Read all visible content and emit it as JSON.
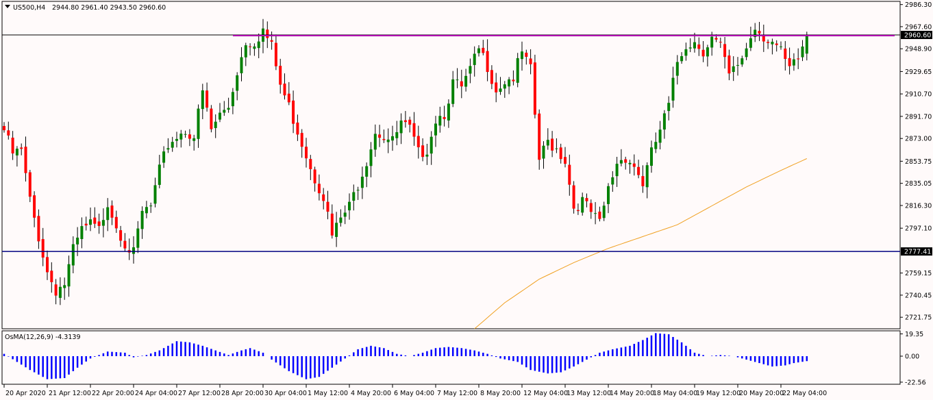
{
  "header": {
    "symbol_label": "US500,H4",
    "ohlc_label": "2944.80 2961.40 2943.50 2960.60",
    "indicator_label": "OsMA(12,26,9) -4.3139"
  },
  "colors": {
    "background": "#fffafa",
    "bull": "#008000",
    "bear": "#ff0000",
    "wick": "#000000",
    "ma_line": "#f0a020",
    "resistance_line": "#b000b0",
    "support_line": "#000080",
    "price_line": "#000000",
    "osma_bar": "#0000ff",
    "label_box": "#000000",
    "label_text": "#ffffff"
  },
  "chart_data": [
    {
      "type": "candlestick",
      "title": "US500,H4",
      "ylim": [
        2712,
        2989
      ],
      "yticks": [
        2986.3,
        2967.6,
        2948.9,
        2929.65,
        2910.7,
        2891.7,
        2873.0,
        2853.75,
        2835.05,
        2816.3,
        2797.1,
        2777.41,
        2759.15,
        2740.45,
        2721.75
      ],
      "ytick_labels": [
        "2986.30",
        "2967.60",
        "2948.90",
        "2929.65",
        "2910.70",
        "2891.70",
        "2873.00",
        "2853.75",
        "2835.05",
        "2816.30",
        "2797.10",
        "2777.41",
        "2759.15",
        "2740.45",
        "2721.75"
      ],
      "xlabels": [
        {
          "index": 0,
          "label": "20 Apr 2020"
        },
        {
          "index": 10,
          "label": "21 Apr 12:00"
        },
        {
          "index": 20,
          "label": "22 Apr 20:00"
        },
        {
          "index": 30,
          "label": "24 Apr 04:00"
        },
        {
          "index": 40,
          "label": "27 Apr 12:00"
        },
        {
          "index": 50,
          "label": "28 Apr 20:00"
        },
        {
          "index": 60,
          "label": "30 Apr 04:00"
        },
        {
          "index": 70,
          "label": "1 May 12:00"
        },
        {
          "index": 80,
          "label": "4 May 20:00"
        },
        {
          "index": 90,
          "label": "6 May 04:00"
        },
        {
          "index": 100,
          "label": "7 May 12:00"
        },
        {
          "index": 110,
          "label": "8 May 20:00"
        },
        {
          "index": 120,
          "label": "12 May 04:00"
        },
        {
          "index": 130,
          "label": "13 May 12:00"
        },
        {
          "index": 140,
          "label": "14 May 20:00"
        },
        {
          "index": 150,
          "label": "18 May 04:00"
        },
        {
          "index": 160,
          "label": "19 May 12:00"
        },
        {
          "index": 170,
          "label": "20 May 20:00"
        },
        {
          "index": 180,
          "label": "22 May 04:00"
        }
      ],
      "horizontal_lines": [
        {
          "name": "resistance",
          "value": 2960.6
        },
        {
          "name": "support",
          "value": 2777.41
        }
      ],
      "price_label": "2960.60",
      "support_label": "2777.41",
      "close_anchors": [
        [
          0,
          2880
        ],
        [
          2,
          2860
        ],
        [
          4,
          2862
        ],
        [
          6,
          2820
        ],
        [
          8,
          2790
        ],
        [
          10,
          2760
        ],
        [
          12,
          2745
        ],
        [
          14,
          2750
        ],
        [
          16,
          2778
        ],
        [
          18,
          2795
        ],
        [
          20,
          2800
        ],
        [
          22,
          2795
        ],
        [
          24,
          2820
        ],
        [
          26,
          2800
        ],
        [
          28,
          2785
        ],
        [
          30,
          2775
        ],
        [
          32,
          2810
        ],
        [
          34,
          2815
        ],
        [
          36,
          2845
        ],
        [
          38,
          2868
        ],
        [
          40,
          2875
        ],
        [
          42,
          2880
        ],
        [
          44,
          2875
        ],
        [
          46,
          2912
        ],
        [
          48,
          2880
        ],
        [
          50,
          2893
        ],
        [
          52,
          2900
        ],
        [
          54,
          2930
        ],
        [
          56,
          2955
        ],
        [
          58,
          2955
        ],
        [
          60,
          2965
        ],
        [
          62,
          2950
        ],
        [
          64,
          2918
        ],
        [
          66,
          2900
        ],
        [
          68,
          2880
        ],
        [
          70,
          2860
        ],
        [
          72,
          2840
        ],
        [
          74,
          2825
        ],
        [
          76,
          2790
        ],
        [
          78,
          2805
        ],
        [
          80,
          2815
        ],
        [
          82,
          2835
        ],
        [
          84,
          2855
        ],
        [
          86,
          2880
        ],
        [
          88,
          2875
        ],
        [
          90,
          2870
        ],
        [
          92,
          2885
        ],
        [
          94,
          2880
        ],
        [
          96,
          2860
        ],
        [
          98,
          2865
        ],
        [
          100,
          2890
        ],
        [
          102,
          2895
        ],
        [
          104,
          2920
        ],
        [
          106,
          2915
        ],
        [
          108,
          2930
        ],
        [
          110,
          2948
        ],
        [
          112,
          2935
        ],
        [
          114,
          2915
        ],
        [
          116,
          2922
        ],
        [
          118,
          2925
        ],
        [
          120,
          2945
        ],
        [
          122,
          2930
        ],
        [
          124,
          2855
        ],
        [
          126,
          2870
        ],
        [
          128,
          2865
        ],
        [
          130,
          2855
        ],
        [
          132,
          2815
        ],
        [
          134,
          2820
        ],
        [
          136,
          2810
        ],
        [
          138,
          2800
        ],
        [
          140,
          2830
        ],
        [
          142,
          2853
        ],
        [
          144,
          2858
        ],
        [
          146,
          2850
        ],
        [
          148,
          2835
        ],
        [
          150,
          2860
        ],
        [
          152,
          2880
        ],
        [
          154,
          2900
        ],
        [
          156,
          2938
        ],
        [
          158,
          2953
        ],
        [
          160,
          2955
        ],
        [
          162,
          2948
        ],
        [
          164,
          2958
        ],
        [
          166,
          2950
        ],
        [
          168,
          2925
        ],
        [
          170,
          2935
        ],
        [
          172,
          2950
        ],
        [
          174,
          2968
        ],
        [
          176,
          2960
        ],
        [
          178,
          2955
        ],
        [
          180,
          2945
        ],
        [
          182,
          2930
        ],
        [
          184,
          2940
        ],
        [
          186,
          2960.6
        ]
      ],
      "ma_anchors": [
        [
          109,
          2712
        ],
        [
          116,
          2734
        ],
        [
          124,
          2754
        ],
        [
          132,
          2768
        ],
        [
          140,
          2780
        ],
        [
          148,
          2790
        ],
        [
          156,
          2800
        ],
        [
          164,
          2816
        ],
        [
          172,
          2832
        ],
        [
          180,
          2846
        ],
        [
          186,
          2856
        ]
      ],
      "osma": {
        "label": "OsMA(12,26,9) -4.3139",
        "ylim": [
          -24,
          22
        ],
        "yticks": [
          19.35,
          0.0,
          -22.56
        ],
        "ytick_labels": [
          "19.35",
          "0.00",
          "-22.56"
        ],
        "anchors": [
          [
            0,
            2
          ],
          [
            3,
            -5
          ],
          [
            6,
            -12
          ],
          [
            10,
            -20
          ],
          [
            14,
            -19
          ],
          [
            17,
            -10
          ],
          [
            20,
            -2
          ],
          [
            24,
            4
          ],
          [
            28,
            3
          ],
          [
            30,
            -1
          ],
          [
            33,
            1
          ],
          [
            36,
            5
          ],
          [
            40,
            13
          ],
          [
            43,
            12
          ],
          [
            46,
            9
          ],
          [
            49,
            5
          ],
          [
            52,
            1
          ],
          [
            55,
            5
          ],
          [
            57,
            7
          ],
          [
            60,
            3
          ],
          [
            62,
            -3
          ],
          [
            66,
            -13
          ],
          [
            70,
            -20
          ],
          [
            73,
            -18
          ],
          [
            76,
            -10
          ],
          [
            79,
            -2
          ],
          [
            82,
            6
          ],
          [
            85,
            9
          ],
          [
            88,
            7
          ],
          [
            91,
            2
          ],
          [
            94,
            0
          ],
          [
            97,
            3
          ],
          [
            100,
            7
          ],
          [
            103,
            8
          ],
          [
            106,
            7
          ],
          [
            109,
            5
          ],
          [
            112,
            2
          ],
          [
            115,
            -2
          ],
          [
            119,
            -5
          ],
          [
            122,
            -12
          ],
          [
            126,
            -15
          ],
          [
            129,
            -14
          ],
          [
            132,
            -9
          ],
          [
            135,
            -3
          ],
          [
            138,
            3
          ],
          [
            141,
            6
          ],
          [
            145,
            9
          ],
          [
            148,
            14
          ],
          [
            151,
            20
          ],
          [
            154,
            19
          ],
          [
            157,
            12
          ],
          [
            160,
            3
          ],
          [
            163,
            0
          ],
          [
            166,
            1
          ],
          [
            169,
            0
          ],
          [
            172,
            -3
          ],
          [
            175,
            -6
          ],
          [
            178,
            -9
          ],
          [
            181,
            -8
          ],
          [
            183,
            -6
          ],
          [
            186,
            -4.3
          ]
        ]
      }
    }
  ]
}
